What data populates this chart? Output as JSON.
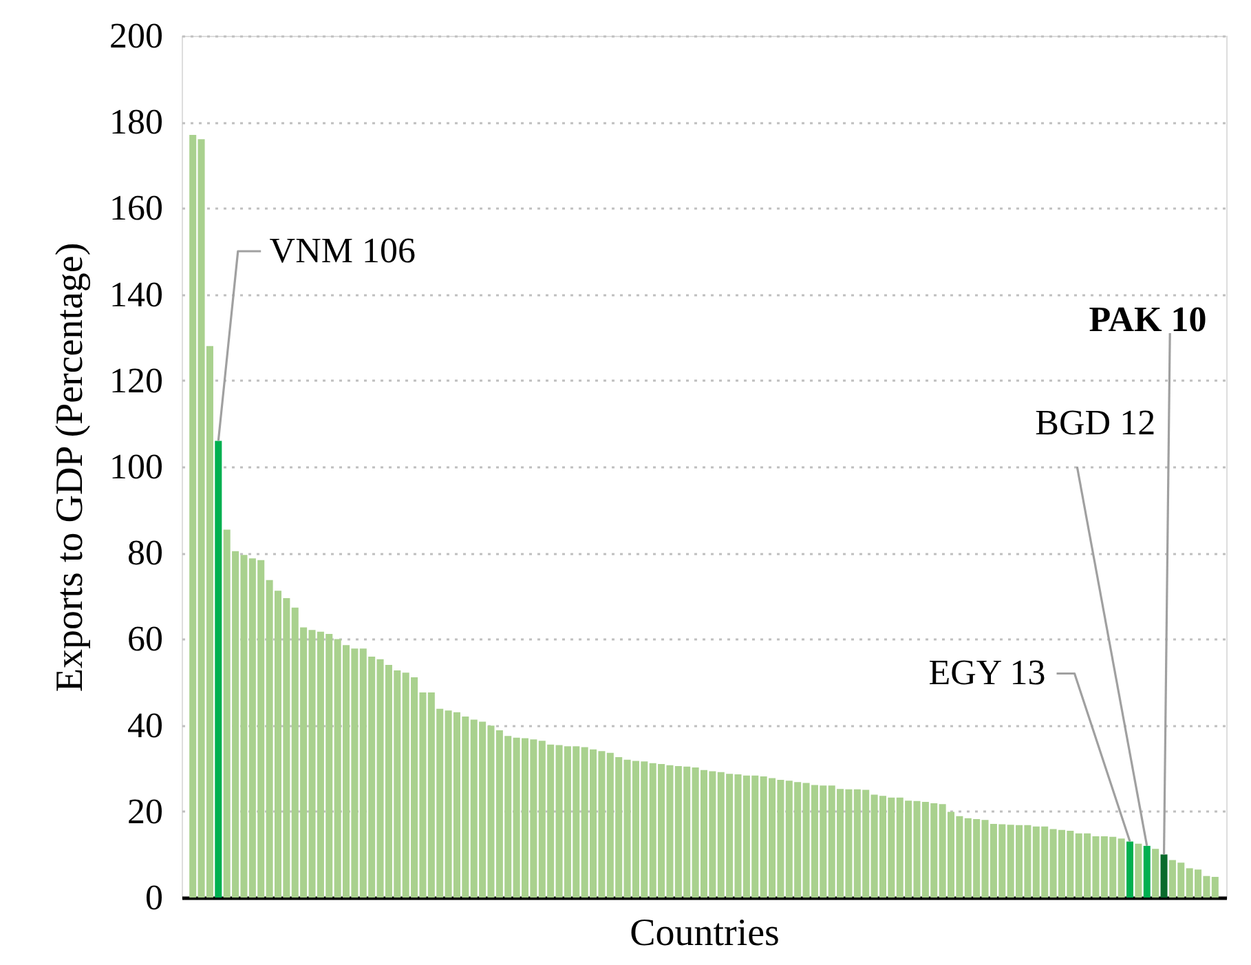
{
  "chart_data": {
    "type": "bar",
    "xlabel": "Countries",
    "ylabel": "Exports to GDP (Percentage)",
    "ylim": [
      0,
      200
    ],
    "yticks": [
      0,
      20,
      40,
      60,
      80,
      100,
      120,
      140,
      160,
      180,
      200
    ],
    "grid": "y",
    "categories": [
      null,
      null,
      null,
      null,
      null,
      null,
      null,
      null,
      null,
      null,
      null,
      null,
      null,
      null,
      null,
      null,
      null,
      null,
      null,
      null,
      null,
      null,
      null,
      null,
      null,
      null,
      null,
      null,
      null,
      null,
      null,
      null,
      null,
      null,
      null,
      null,
      null,
      null,
      null,
      null,
      null,
      null,
      null,
      null,
      null,
      null,
      null,
      null,
      null,
      null,
      null,
      null,
      null,
      null,
      null,
      null,
      null,
      null,
      null,
      null,
      null,
      null,
      null,
      null,
      null,
      null,
      null,
      null,
      null,
      null,
      null,
      null,
      null,
      null,
      null,
      null,
      null,
      null,
      null,
      null,
      null,
      null,
      null,
      null,
      null,
      null,
      null,
      null,
      null,
      null,
      null,
      null,
      null,
      null,
      null,
      null,
      null,
      null,
      null,
      null,
      null,
      null,
      null,
      null,
      null,
      null,
      null,
      null,
      null,
      null,
      null,
      null,
      null,
      null,
      null,
      null,
      null,
      null,
      null,
      null,
      null
    ],
    "values": [
      177,
      176,
      128,
      106,
      85.4,
      80.4,
      79.5,
      78.7,
      78.3,
      73.7,
      71.2,
      69.5,
      67.3,
      62.7,
      62.1,
      61.7,
      61.2,
      60,
      58.6,
      57.8,
      57.8,
      55.9,
      55.3,
      54,
      52.7,
      52.2,
      51.1,
      47.6,
      47.6,
      43.8,
      43.4,
      43,
      42,
      41.3,
      40.8,
      39.9,
      38.8,
      37.5,
      37.1,
      37.0,
      36.7,
      36.4,
      35.5,
      35.4,
      35.1,
      35.1,
      34.9,
      34.4,
      34.0,
      33.6,
      32.6,
      32.0,
      31.7,
      31.6,
      31.2,
      31.0,
      30.7,
      30.5,
      30.4,
      30.2,
      29.6,
      29.3,
      29.1,
      28.7,
      28.6,
      28.3,
      28.3,
      28.1,
      27.7,
      27.3,
      27.1,
      26.8,
      26.6,
      26.1,
      26.0,
      26.0,
      25.2,
      25.1,
      25.1,
      25.0,
      23.9,
      23.6,
      23.2,
      23.2,
      22.5,
      22.4,
      22.2,
      21.9,
      21.7,
      19.9,
      18.9,
      18.4,
      18.2,
      18.0,
      17.1,
      17.0,
      16.9,
      16.8,
      16.8,
      16.5,
      16.5,
      15.9,
      15.7,
      15.5,
      14.9,
      14.9,
      14.2,
      14.2,
      14.1,
      13.7,
      13,
      12.5,
      12,
      11.3,
      10,
      8.7,
      8.1,
      6.8,
      6.5,
      5.0,
      4.8
    ],
    "colors": [
      "#a9d18e",
      "#a9d18e",
      "#a9d18e",
      "#00b050",
      "#a9d18e",
      "#a9d18e",
      "#a9d18e",
      "#a9d18e",
      "#a9d18e",
      "#a9d18e",
      "#a9d18e",
      "#a9d18e",
      "#a9d18e",
      "#a9d18e",
      "#a9d18e",
      "#a9d18e",
      "#a9d18e",
      "#a9d18e",
      "#a9d18e",
      "#a9d18e",
      "#a9d18e",
      "#a9d18e",
      "#a9d18e",
      "#a9d18e",
      "#a9d18e",
      "#a9d18e",
      "#a9d18e",
      "#a9d18e",
      "#a9d18e",
      "#a9d18e",
      "#a9d18e",
      "#a9d18e",
      "#a9d18e",
      "#a9d18e",
      "#a9d18e",
      "#a9d18e",
      "#a9d18e",
      "#a9d18e",
      "#a9d18e",
      "#a9d18e",
      "#a9d18e",
      "#a9d18e",
      "#a9d18e",
      "#a9d18e",
      "#a9d18e",
      "#a9d18e",
      "#a9d18e",
      "#a9d18e",
      "#a9d18e",
      "#a9d18e",
      "#a9d18e",
      "#a9d18e",
      "#a9d18e",
      "#a9d18e",
      "#a9d18e",
      "#a9d18e",
      "#a9d18e",
      "#a9d18e",
      "#a9d18e",
      "#a9d18e",
      "#a9d18e",
      "#a9d18e",
      "#a9d18e",
      "#a9d18e",
      "#a9d18e",
      "#a9d18e",
      "#a9d18e",
      "#a9d18e",
      "#a9d18e",
      "#a9d18e",
      "#a9d18e",
      "#a9d18e",
      "#a9d18e",
      "#a9d18e",
      "#a9d18e",
      "#a9d18e",
      "#a9d18e",
      "#a9d18e",
      "#a9d18e",
      "#a9d18e",
      "#a9d18e",
      "#a9d18e",
      "#a9d18e",
      "#a9d18e",
      "#a9d18e",
      "#a9d18e",
      "#a9d18e",
      "#a9d18e",
      "#a9d18e",
      "#a9d18e",
      "#a9d18e",
      "#a9d18e",
      "#a9d18e",
      "#a9d18e",
      "#a9d18e",
      "#a9d18e",
      "#a9d18e",
      "#a9d18e",
      "#a9d18e",
      "#a9d18e",
      "#a9d18e",
      "#a9d18e",
      "#a9d18e",
      "#a9d18e",
      "#a9d18e",
      "#a9d18e",
      "#a9d18e",
      "#a9d18e",
      "#a9d18e",
      "#a9d18e",
      "#00b050",
      "#a9d18e",
      "#00b050",
      "#a9d18e",
      "#0b6b2c",
      "#a9d18e",
      "#a9d18e",
      "#a9d18e",
      "#a9d18e",
      "#a9d18e",
      "#a9d18e"
    ],
    "value_labels": [
      null,
      null,
      null,
      "VNM 106",
      null,
      null,
      null,
      null,
      null,
      null,
      null,
      null,
      null,
      null,
      null,
      null,
      null,
      null,
      null,
      null,
      null,
      null,
      null,
      null,
      null,
      null,
      null,
      null,
      null,
      null,
      null,
      null,
      null,
      null,
      null,
      null,
      null,
      null,
      null,
      null,
      null,
      null,
      null,
      null,
      null,
      null,
      null,
      null,
      null,
      null,
      null,
      null,
      null,
      null,
      null,
      null,
      null,
      null,
      null,
      null,
      null,
      null,
      null,
      null,
      null,
      null,
      null,
      null,
      null,
      null,
      null,
      null,
      null,
      null,
      null,
      null,
      null,
      null,
      null,
      null,
      null,
      null,
      null,
      null,
      null,
      null,
      null,
      null,
      null,
      null,
      null,
      null,
      null,
      null,
      null,
      null,
      null,
      null,
      null,
      null,
      null,
      null,
      null,
      null,
      null,
      null,
      null,
      null,
      null,
      null,
      "EGY 13",
      null,
      "BGD 12",
      null,
      "PAK 10",
      null,
      null,
      null,
      null,
      null,
      null
    ]
  }
}
